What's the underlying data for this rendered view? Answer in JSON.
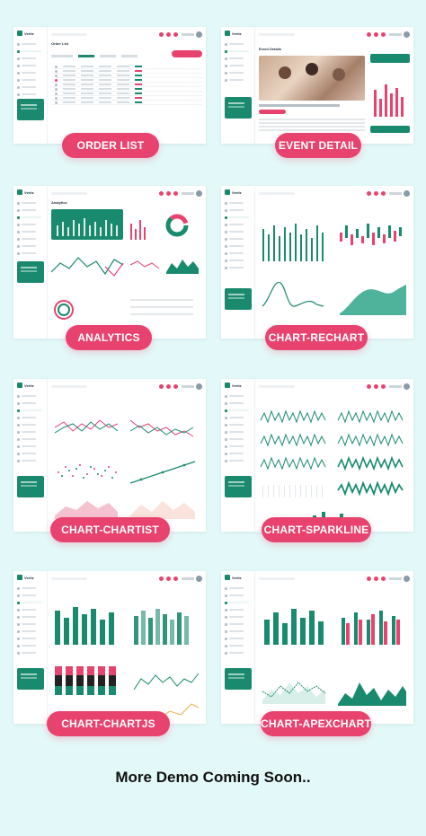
{
  "app": {
    "logo_text": "Veritz"
  },
  "demos": [
    {
      "label": "ORDER LIST",
      "screen_title": "Order List"
    },
    {
      "label": "EVENT DETAIL",
      "screen_title": "Event Details"
    },
    {
      "label": "ANALYTICS",
      "screen_title": "Analytics"
    },
    {
      "label": "CHART-RECHART",
      "screen_title": ""
    },
    {
      "label": "CHART-CHARTIST",
      "screen_title": ""
    },
    {
      "label": "CHART-SPARKLINE",
      "screen_title": ""
    },
    {
      "label": "CHART-CHARTJS",
      "screen_title": ""
    },
    {
      "label": "CHART-APEXCHART",
      "screen_title": ""
    }
  ],
  "footer": {
    "text": "More Demo Coming Soon.."
  },
  "colors": {
    "background": "#e3f9f9",
    "accent_pink": "#e8436f",
    "brand_green": "#1a8a6e"
  },
  "icons": {
    "logo": "veritz-logo-icon",
    "search": "search-icon",
    "notification": "bell-icon",
    "avatar": "user-avatar-icon"
  }
}
